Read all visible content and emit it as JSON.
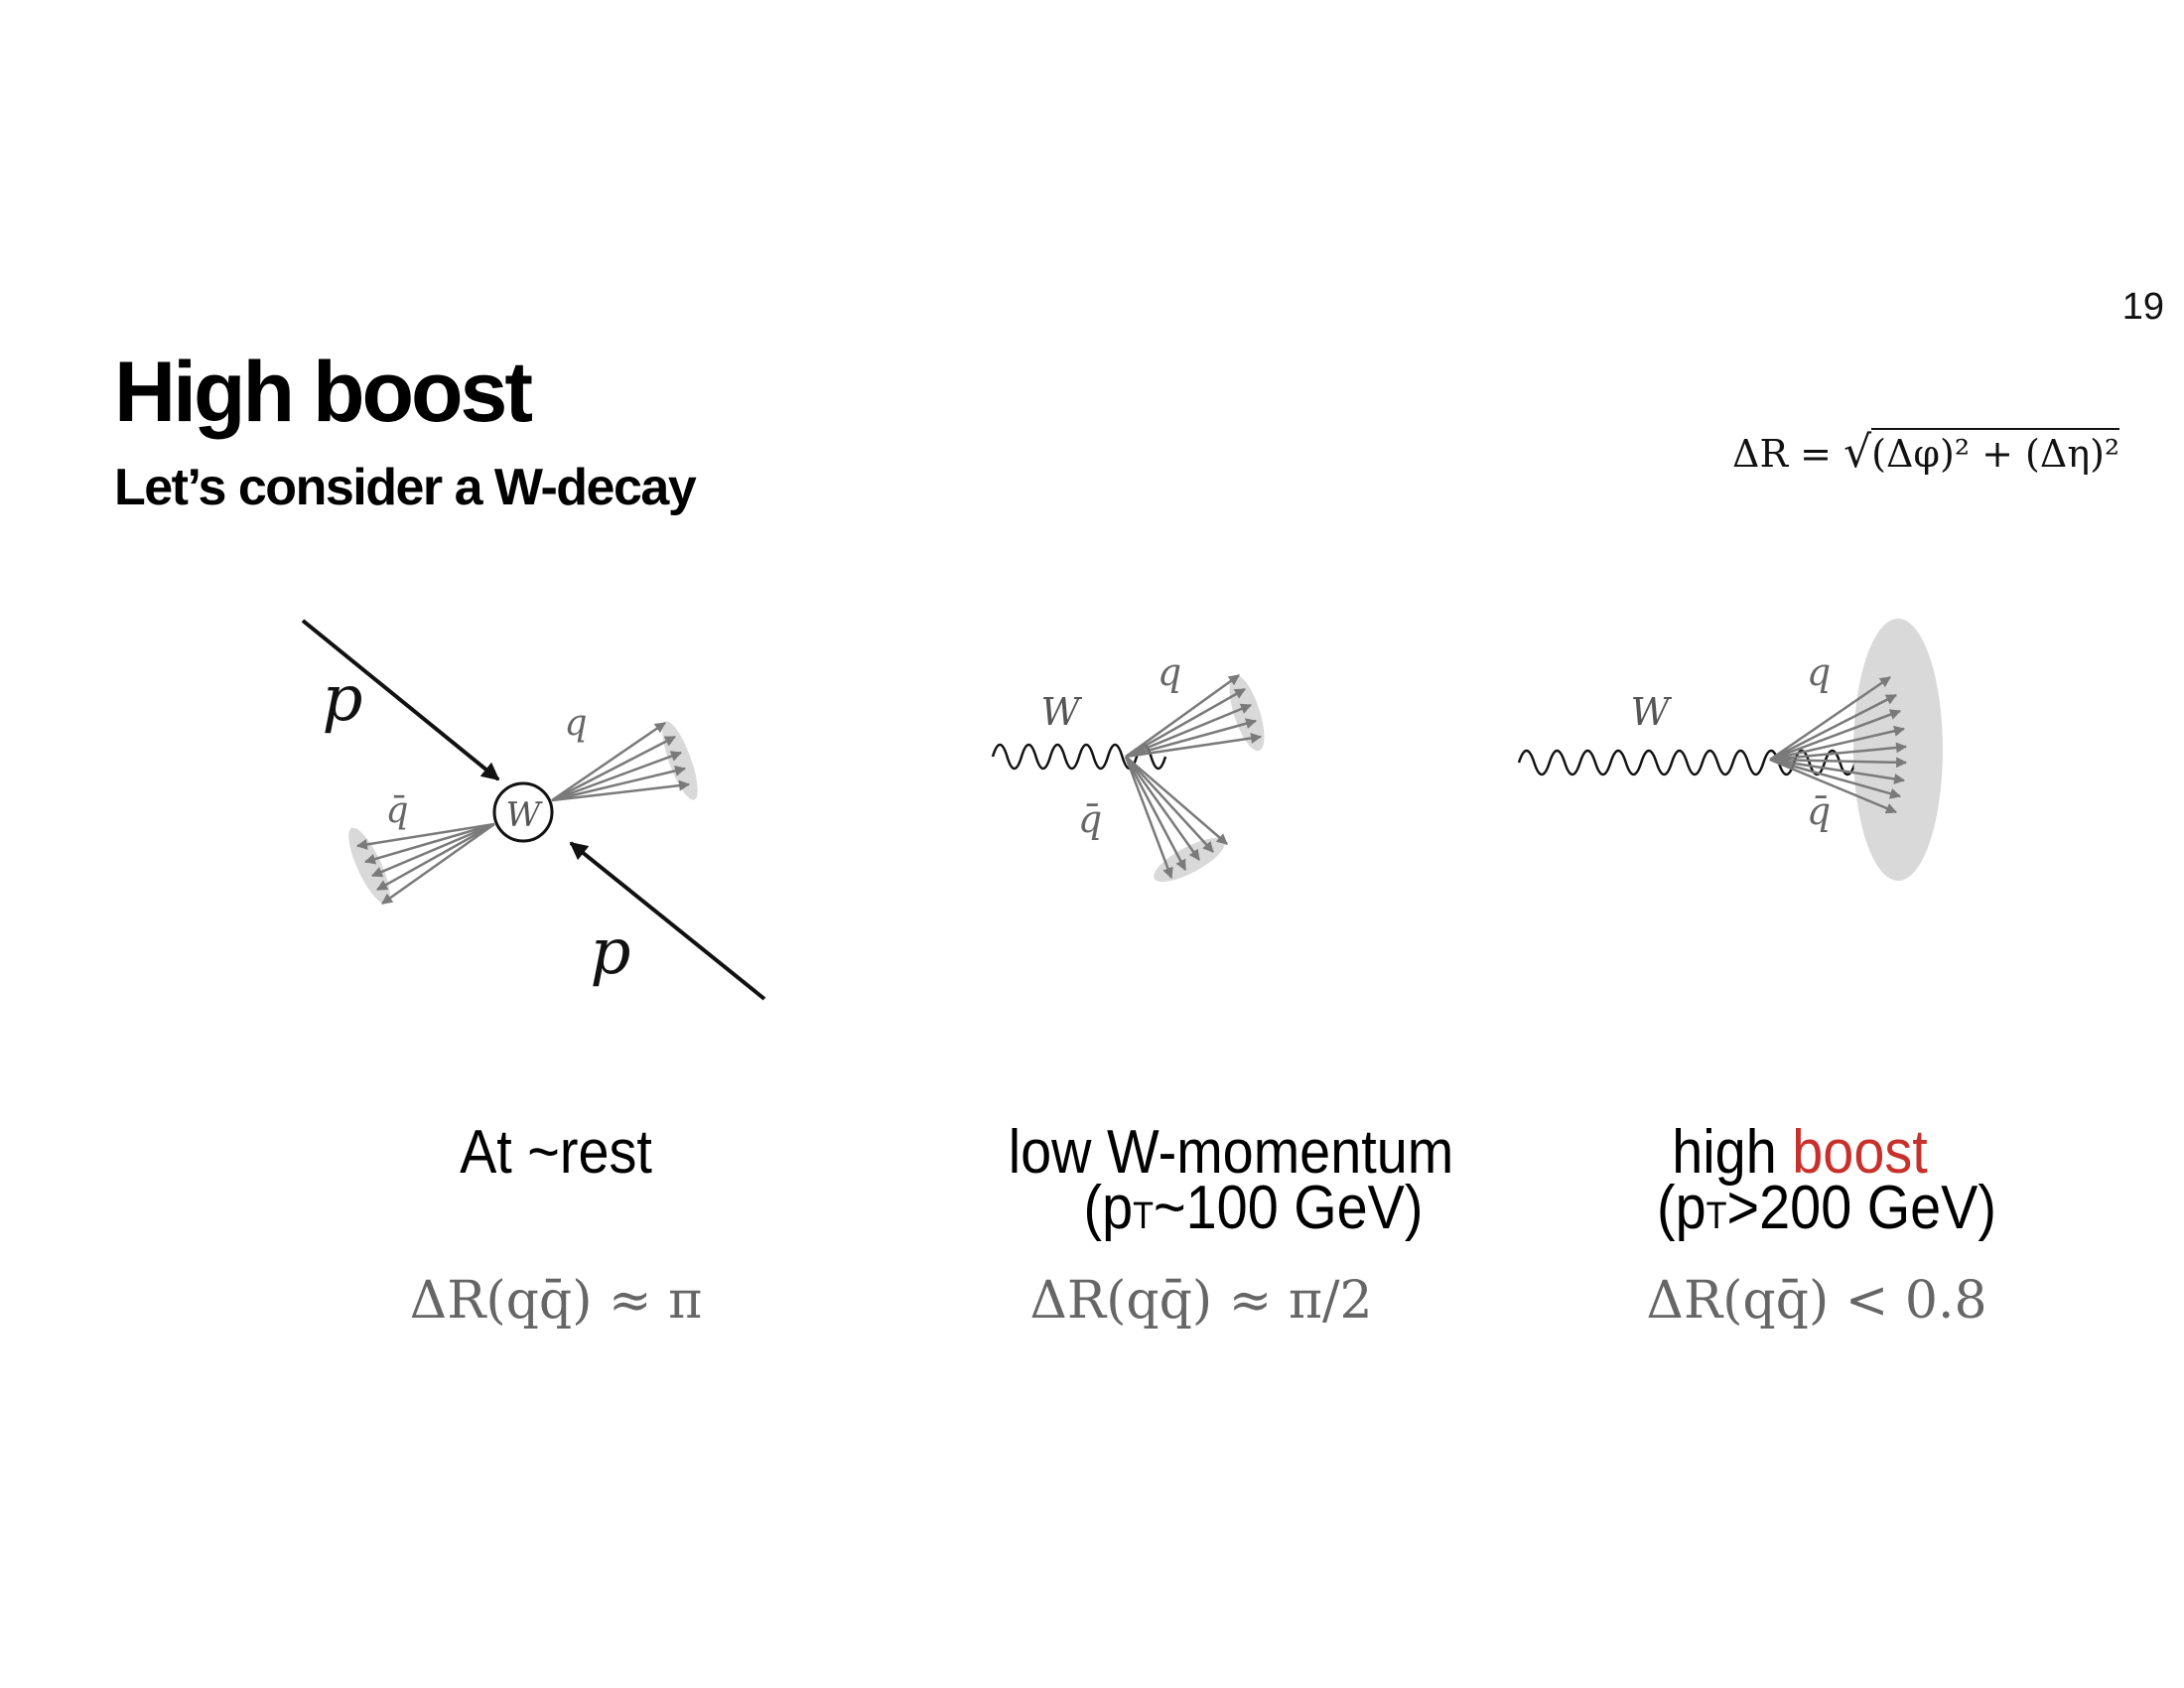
{
  "slide": {
    "page_number": "19",
    "title": "High boost",
    "subtitle": "Let’s consider a W-decay",
    "formula": {
      "lhs": "ΔR =",
      "radical": "√",
      "radicand": "(Δφ)² + (Δη)²"
    }
  },
  "panels": [
    {
      "caption_line1": "At ~rest",
      "delta_r": "ΔR(qq̄) ≈ π",
      "labels": {
        "proton_1": "p",
        "proton_2": "p",
        "boson": "W",
        "quark": "q",
        "antiquark": "q̄"
      }
    },
    {
      "caption_line1": "low W-momentum",
      "caption_p": "(p",
      "caption_sub": "T",
      "caption_rest": "~100 GeV)",
      "delta_r": "ΔR(qq̄) ≈ π/2",
      "labels": {
        "boson": "W",
        "quark": "q",
        "antiquark": "q̄"
      }
    },
    {
      "caption_plain": "high ",
      "caption_accent": "boost",
      "caption_p": "(p",
      "caption_sub": "T",
      "caption_rest": ">200 GeV)",
      "delta_r": "ΔR(qq̄) < 0.8",
      "labels": {
        "boson": "W",
        "quark": "q",
        "antiquark": "q̄"
      }
    }
  ],
  "colors": {
    "accent": "#c8312b",
    "jet_arrow": "#7a7a7a",
    "jet_cone": "#d9d9d9",
    "proton_arrow": "#111111"
  }
}
